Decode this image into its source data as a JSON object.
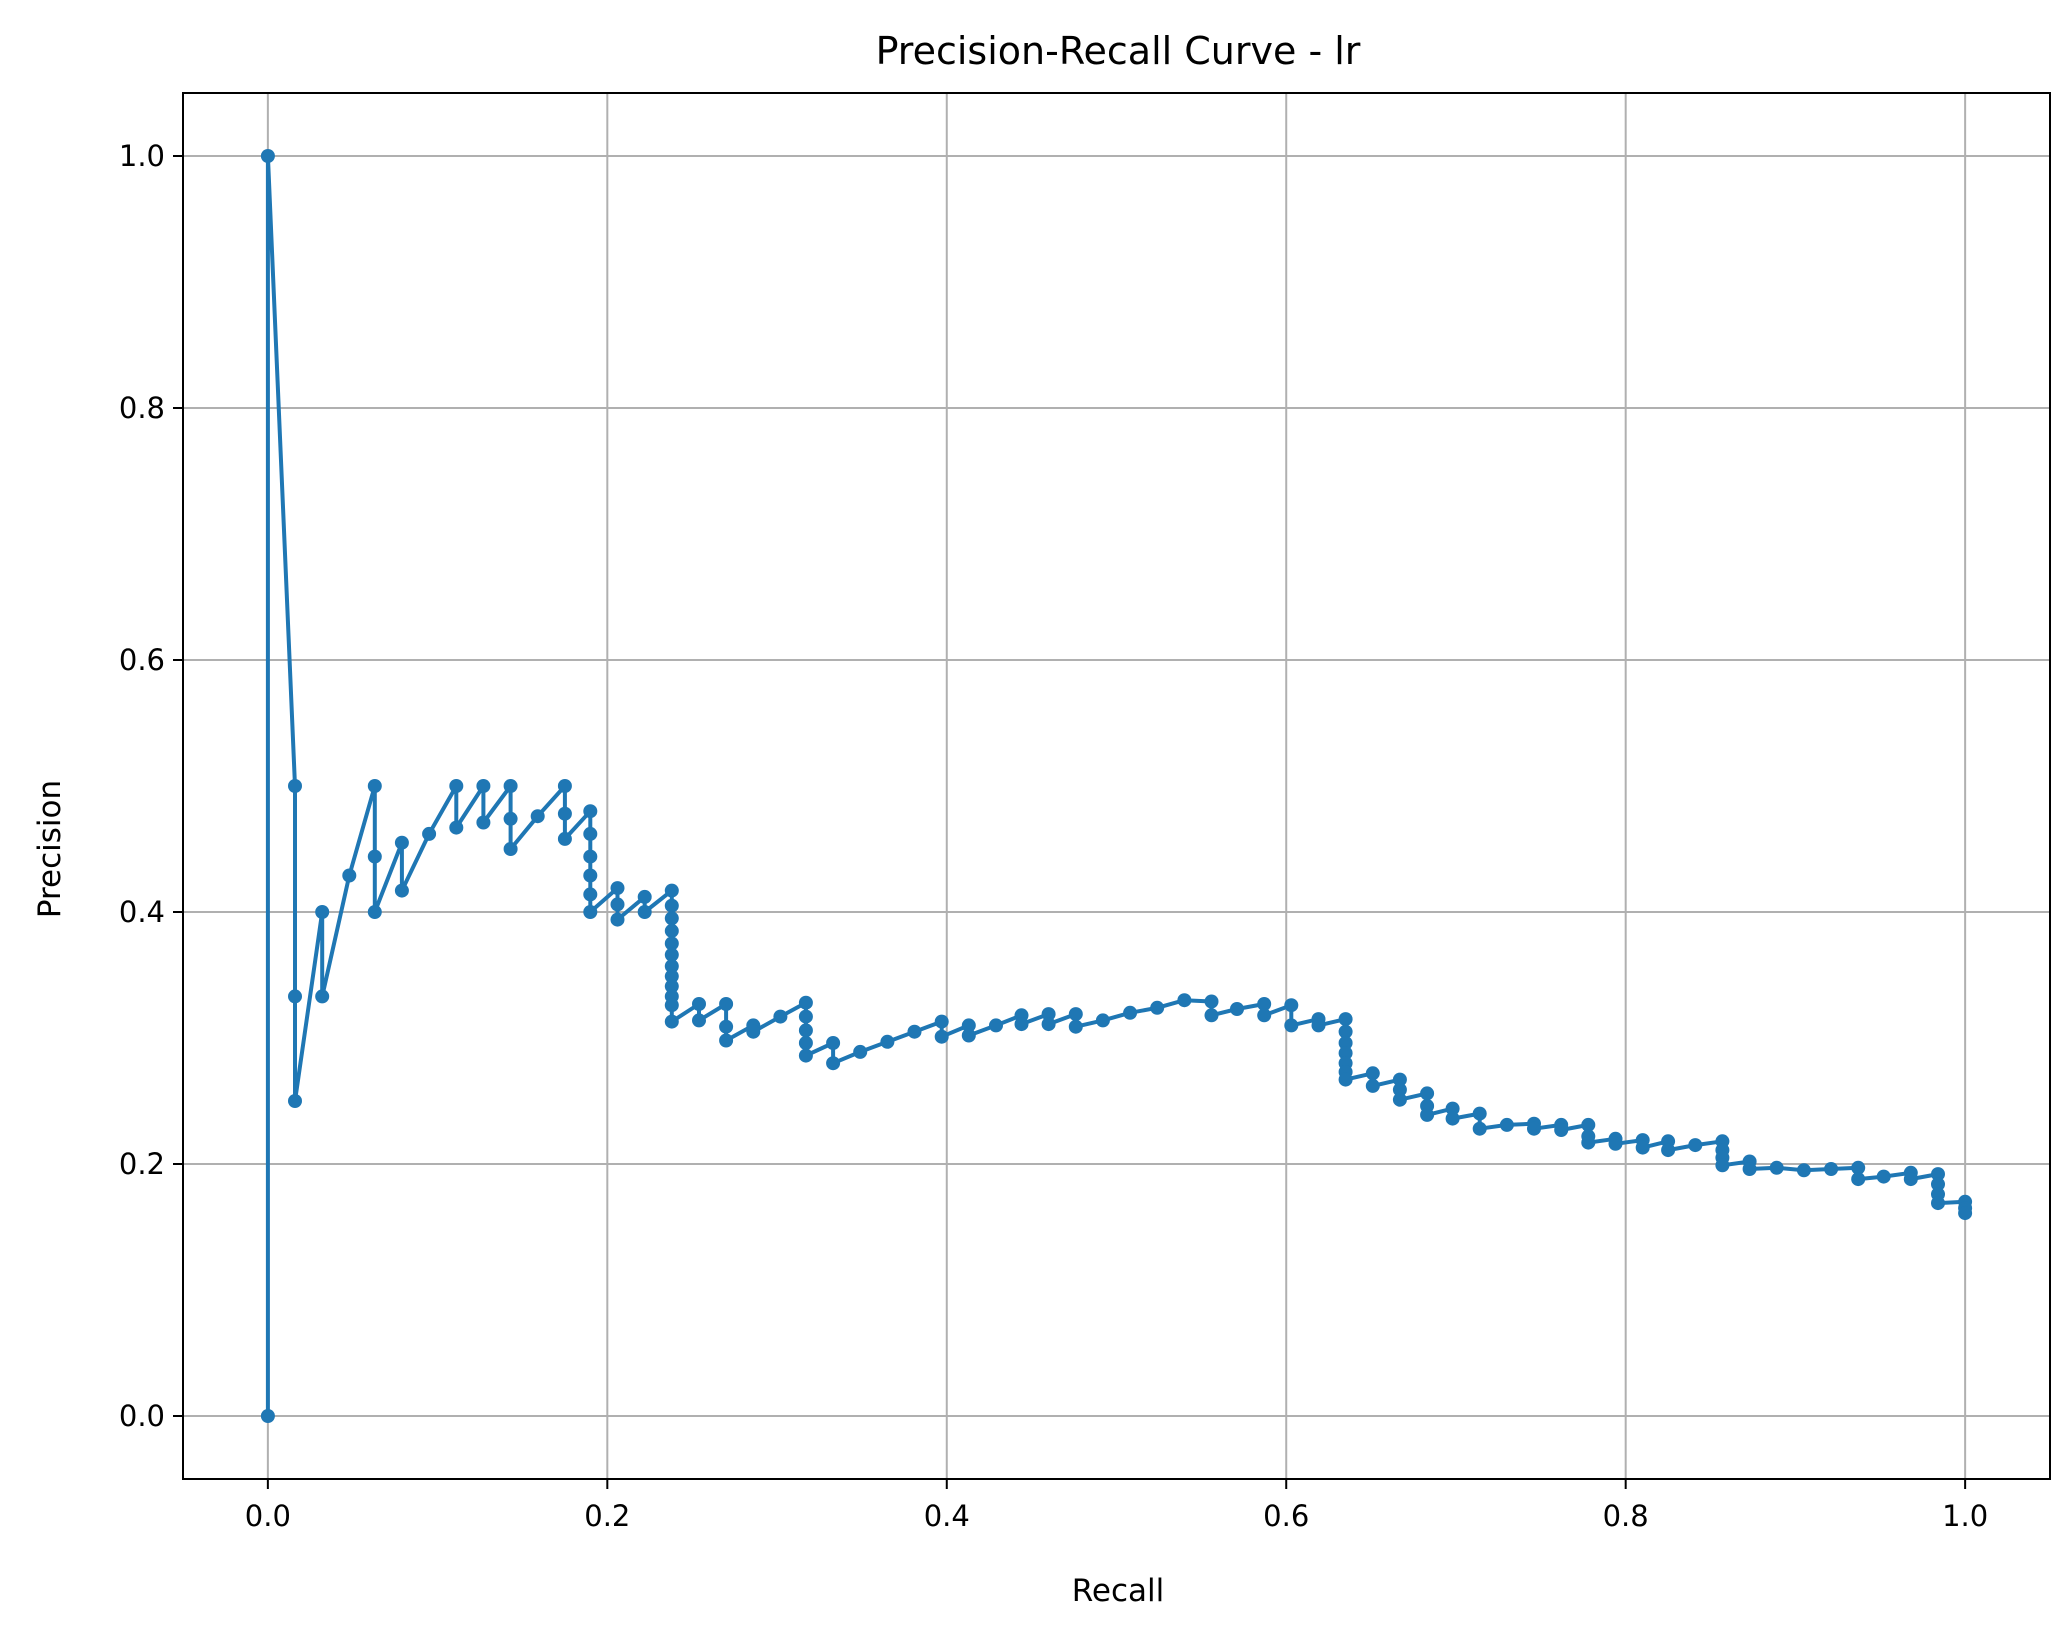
{
  "chart_data": {
    "type": "line",
    "title": "Precision-Recall Curve - lr",
    "xlabel": "Recall",
    "ylabel": "Precision",
    "xlim": [
      -0.05,
      1.05
    ],
    "ylim": [
      -0.05,
      1.05
    ],
    "xticks": [
      "0.0",
      "0.2",
      "0.4",
      "0.6",
      "0.8",
      "1.0"
    ],
    "yticks": [
      "0.0",
      "0.2",
      "0.4",
      "0.6",
      "0.8",
      "1.0"
    ],
    "grid": true,
    "marker": "circle",
    "color": "#1f77b4",
    "series": [
      {
        "x": [
          0.0,
          0.0,
          0.016,
          0.016,
          0.016,
          0.032,
          0.032,
          0.048,
          0.063,
          0.063,
          0.063,
          0.079,
          0.079,
          0.095,
          0.111,
          0.111,
          0.127,
          0.127,
          0.143,
          0.143,
          0.143,
          0.159,
          0.175,
          0.175,
          0.175,
          0.19,
          0.19,
          0.19,
          0.19,
          0.19,
          0.19,
          0.206,
          0.206,
          0.206,
          0.222,
          0.222,
          0.238,
          0.238,
          0.238,
          0.238,
          0.238,
          0.238,
          0.238,
          0.238,
          0.238,
          0.238,
          0.238,
          0.238,
          0.254,
          0.254,
          0.27,
          0.27,
          0.27,
          0.286,
          0.286,
          0.302,
          0.317,
          0.317,
          0.317,
          0.317,
          0.317,
          0.333,
          0.333,
          0.349,
          0.365,
          0.381,
          0.397,
          0.397,
          0.413,
          0.413,
          0.429,
          0.444,
          0.444,
          0.46,
          0.46,
          0.476,
          0.476,
          0.492,
          0.508,
          0.524,
          0.54,
          0.556,
          0.556,
          0.571,
          0.587,
          0.587,
          0.603,
          0.603,
          0.619,
          0.619,
          0.635,
          0.635,
          0.635,
          0.635,
          0.635,
          0.635,
          0.635,
          0.651,
          0.651,
          0.667,
          0.667,
          0.667,
          0.683,
          0.683,
          0.683,
          0.698,
          0.698,
          0.714,
          0.714,
          0.73,
          0.746,
          0.746,
          0.762,
          0.762,
          0.778,
          0.778,
          0.778,
          0.794,
          0.794,
          0.81,
          0.81,
          0.825,
          0.825,
          0.841,
          0.857,
          0.857,
          0.857,
          0.857,
          0.873,
          0.873,
          0.889,
          0.905,
          0.921,
          0.937,
          0.937,
          0.952,
          0.968,
          0.968,
          0.984,
          0.984,
          0.984,
          0.984,
          1.0,
          1.0,
          1.0
        ],
        "y": [
          0.0,
          1.0,
          0.5,
          0.333,
          0.25,
          0.4,
          0.333,
          0.429,
          0.5,
          0.444,
          0.4,
          0.455,
          0.417,
          0.462,
          0.5,
          0.467,
          0.5,
          0.471,
          0.5,
          0.474,
          0.45,
          0.476,
          0.5,
          0.478,
          0.458,
          0.48,
          0.462,
          0.444,
          0.429,
          0.414,
          0.4,
          0.419,
          0.406,
          0.394,
          0.412,
          0.4,
          0.417,
          0.405,
          0.395,
          0.385,
          0.375,
          0.366,
          0.357,
          0.349,
          0.341,
          0.333,
          0.326,
          0.313,
          0.327,
          0.314,
          0.327,
          0.309,
          0.298,
          0.31,
          0.305,
          0.317,
          0.328,
          0.317,
          0.306,
          0.296,
          0.286,
          0.296,
          0.28,
          0.289,
          0.297,
          0.305,
          0.313,
          0.301,
          0.31,
          0.302,
          0.31,
          0.318,
          0.311,
          0.319,
          0.311,
          0.319,
          0.309,
          0.314,
          0.32,
          0.324,
          0.33,
          0.329,
          0.318,
          0.323,
          0.327,
          0.318,
          0.326,
          0.31,
          0.315,
          0.31,
          0.315,
          0.305,
          0.296,
          0.288,
          0.28,
          0.273,
          0.267,
          0.272,
          0.262,
          0.267,
          0.259,
          0.251,
          0.256,
          0.246,
          0.239,
          0.244,
          0.236,
          0.24,
          0.228,
          0.231,
          0.232,
          0.228,
          0.231,
          0.227,
          0.231,
          0.222,
          0.217,
          0.22,
          0.216,
          0.219,
          0.213,
          0.218,
          0.211,
          0.215,
          0.218,
          0.211,
          0.205,
          0.199,
          0.202,
          0.196,
          0.197,
          0.195,
          0.196,
          0.197,
          0.188,
          0.19,
          0.193,
          0.188,
          0.192,
          0.184,
          0.176,
          0.169,
          0.17,
          0.165,
          0.161
        ]
      }
    ]
  }
}
